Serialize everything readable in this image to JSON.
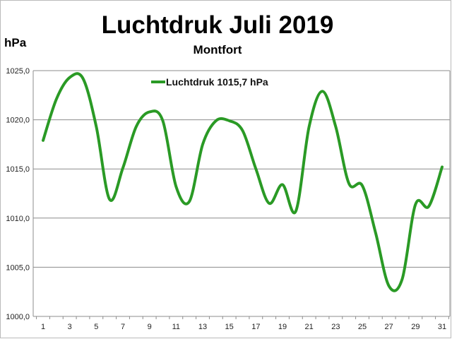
{
  "chart_data": {
    "type": "line",
    "title": "Luchtdruk Juli 2019",
    "subtitle": "Montfort",
    "ylabel": "hPa",
    "xlabel": "",
    "ylim": [
      1000,
      1025
    ],
    "yticks": [
      "1000,0",
      "1005,0",
      "1010,0",
      "1015,0",
      "1020,0",
      "1025,0"
    ],
    "ytick_values": [
      1000,
      1005,
      1010,
      1015,
      1020,
      1025
    ],
    "x": [
      1,
      2,
      3,
      4,
      5,
      6,
      7,
      8,
      9,
      10,
      11,
      12,
      13,
      14,
      15,
      16,
      17,
      18,
      19,
      20,
      21,
      22,
      23,
      24,
      25,
      26,
      27,
      28,
      29,
      30,
      31
    ],
    "xtick_labels": [
      "1",
      "3",
      "5",
      "7",
      "9",
      "11",
      "13",
      "15",
      "17",
      "19",
      "21",
      "23",
      "25",
      "27",
      "29",
      "31"
    ],
    "grid": true,
    "legend_position": "top-center",
    "series": [
      {
        "name": "Luchtdruk 1015,7 hPa",
        "color": "#2a9a25",
        "values": [
          1017.9,
          1022.1,
          1024.3,
          1024.2,
          1019.3,
          1011.9,
          1015.1,
          1019.3,
          1020.8,
          1019.9,
          1013.2,
          1011.7,
          1017.5,
          1019.9,
          1019.9,
          1018.9,
          1015.0,
          1011.5,
          1013.4,
          1010.7,
          1019.3,
          1022.9,
          1019.3,
          1013.5,
          1013.3,
          1008.5,
          1003.1,
          1003.8,
          1011.4,
          1011.2,
          1015.2
        ]
      }
    ]
  }
}
